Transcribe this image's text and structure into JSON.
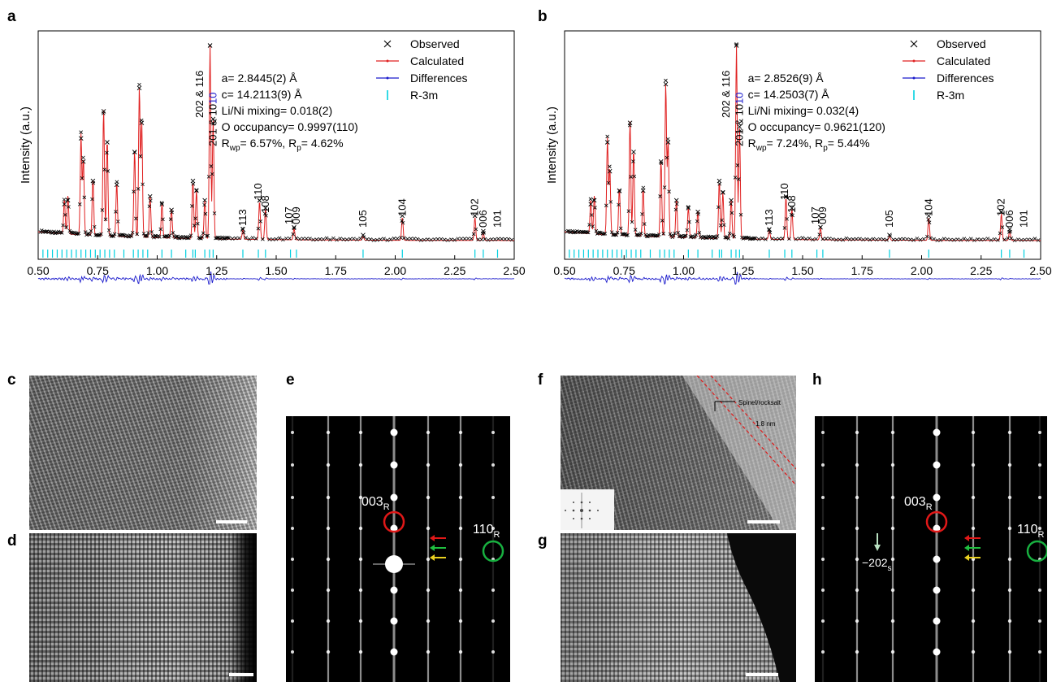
{
  "panels": {
    "a": "a",
    "b": "b",
    "c": "c",
    "d": "d",
    "e": "e",
    "f": "f",
    "g": "g",
    "h": "h"
  },
  "chart_data": [
    {
      "type": "line",
      "panel": "a",
      "xlabel": "d spacing (Angstrom)",
      "ylabel": "Intensity (a.u.)",
      "xlim": [
        0.5,
        2.5
      ],
      "xticks": [
        "0.50",
        "0.75",
        "1.00",
        "1.25",
        "1.50",
        "1.75",
        "2.00",
        "2.25",
        "2.50"
      ],
      "legend_position": "top-right",
      "legend": [
        "Observed",
        "Calculated",
        "Differences",
        "R-3m"
      ],
      "annotation_lines": [
        "a= 2.8445(2) Å",
        "c= 14.2113(9) Å",
        "Li/Ni mixing= 0.018(2)",
        "O occupancy= 0.9997(110)",
        "R_wp= 6.57%, R_p= 4.62%"
      ],
      "rwp": "6.57%",
      "rp": "4.62%",
      "peak_labels": [
        {
          "label": "202 & 116",
          "d": 1.22
        },
        {
          "label": "201 & 10",
          "d": 1.235
        },
        {
          "label": "113",
          "d": 1.36
        },
        {
          "label": "110",
          "d": 1.425
        },
        {
          "label": "108",
          "d": 1.455
        },
        {
          "label": "107",
          "d": 1.555
        },
        {
          "label": "009",
          "d": 1.585
        },
        {
          "label": "105",
          "d": 1.865
        },
        {
          "label": "104",
          "d": 2.03
        },
        {
          "label": "102",
          "d": 2.335
        },
        {
          "label": "006",
          "d": 2.37
        },
        {
          "label": "101",
          "d": 2.43
        }
      ],
      "peaks": [
        {
          "d": 0.61,
          "i": 0.18
        },
        {
          "d": 0.625,
          "i": 0.2
        },
        {
          "d": 0.68,
          "i": 0.52
        },
        {
          "d": 0.69,
          "i": 0.4
        },
        {
          "d": 0.73,
          "i": 0.3
        },
        {
          "d": 0.775,
          "i": 0.66
        },
        {
          "d": 0.79,
          "i": 0.5
        },
        {
          "d": 0.83,
          "i": 0.28
        },
        {
          "d": 0.905,
          "i": 0.45
        },
        {
          "d": 0.925,
          "i": 0.78
        },
        {
          "d": 0.935,
          "i": 0.6
        },
        {
          "d": 0.97,
          "i": 0.22
        },
        {
          "d": 1.02,
          "i": 0.18
        },
        {
          "d": 1.06,
          "i": 0.15
        },
        {
          "d": 1.15,
          "i": 0.3
        },
        {
          "d": 1.165,
          "i": 0.25
        },
        {
          "d": 1.2,
          "i": 0.2
        },
        {
          "d": 1.222,
          "i": 1.0
        },
        {
          "d": 1.235,
          "i": 0.62
        },
        {
          "d": 1.36,
          "i": 0.05
        },
        {
          "d": 1.43,
          "i": 0.2
        },
        {
          "d": 1.455,
          "i": 0.16
        },
        {
          "d": 1.575,
          "i": 0.06
        },
        {
          "d": 1.865,
          "i": 0.02
        },
        {
          "d": 2.03,
          "i": 0.12
        },
        {
          "d": 2.335,
          "i": 0.12
        },
        {
          "d": 2.37,
          "i": 0.04
        }
      ],
      "tick_marks_d": [
        0.52,
        0.54,
        0.56,
        0.58,
        0.6,
        0.62,
        0.64,
        0.66,
        0.68,
        0.7,
        0.72,
        0.74,
        0.76,
        0.78,
        0.8,
        0.82,
        0.86,
        0.9,
        0.92,
        0.94,
        0.96,
        1.02,
        1.06,
        1.12,
        1.15,
        1.16,
        1.2,
        1.22,
        1.235,
        1.36,
        1.425,
        1.455,
        1.56,
        1.585,
        1.865,
        2.03,
        2.335,
        2.37,
        2.43
      ]
    },
    {
      "type": "line",
      "panel": "b",
      "xlabel": "d spacing (Angstrom)",
      "ylabel": "Intensity (a.u.)",
      "xlim": [
        0.5,
        2.5
      ],
      "xticks": [
        "0.50",
        "0.75",
        "1.00",
        "1.25",
        "1.50",
        "1.75",
        "2.00",
        "2.25",
        "2.50"
      ],
      "legend_position": "top-right",
      "legend": [
        "Observed",
        "Calculated",
        "Differences",
        "R-3m"
      ],
      "annotation_lines": [
        "a= 2.8526(9) Å",
        "c= 14.2503(7) Å",
        "Li/Ni mixing= 0.032(4)",
        "O occupancy= 0.9621(120)",
        "R_wp= 7.24%, R_p= 5.44%"
      ],
      "rwp": "7.24%",
      "rp": "5.44%",
      "peak_labels": [
        {
          "label": "202 & 116",
          "d": 1.22
        },
        {
          "label": "201 & 10",
          "d": 1.235
        },
        {
          "label": "113",
          "d": 1.36
        },
        {
          "label": "110",
          "d": 1.425
        },
        {
          "label": "108",
          "d": 1.455
        },
        {
          "label": "107",
          "d": 1.555
        },
        {
          "label": "009",
          "d": 1.585
        },
        {
          "label": "105",
          "d": 1.865
        },
        {
          "label": "104",
          "d": 2.03
        },
        {
          "label": "102",
          "d": 2.335
        },
        {
          "label": "006",
          "d": 2.37
        },
        {
          "label": "101",
          "d": 2.43
        }
      ],
      "peaks": [
        {
          "d": 0.61,
          "i": 0.18
        },
        {
          "d": 0.625,
          "i": 0.2
        },
        {
          "d": 0.68,
          "i": 0.5
        },
        {
          "d": 0.69,
          "i": 0.35
        },
        {
          "d": 0.73,
          "i": 0.25
        },
        {
          "d": 0.775,
          "i": 0.6
        },
        {
          "d": 0.79,
          "i": 0.45
        },
        {
          "d": 0.83,
          "i": 0.25
        },
        {
          "d": 0.905,
          "i": 0.4
        },
        {
          "d": 0.925,
          "i": 0.8
        },
        {
          "d": 0.935,
          "i": 0.5
        },
        {
          "d": 0.97,
          "i": 0.2
        },
        {
          "d": 1.02,
          "i": 0.16
        },
        {
          "d": 1.06,
          "i": 0.14
        },
        {
          "d": 1.15,
          "i": 0.3
        },
        {
          "d": 1.165,
          "i": 0.24
        },
        {
          "d": 1.2,
          "i": 0.2
        },
        {
          "d": 1.222,
          "i": 1.0
        },
        {
          "d": 1.235,
          "i": 0.58
        },
        {
          "d": 1.36,
          "i": 0.05
        },
        {
          "d": 1.43,
          "i": 0.22
        },
        {
          "d": 1.455,
          "i": 0.16
        },
        {
          "d": 1.575,
          "i": 0.06
        },
        {
          "d": 1.865,
          "i": 0.02
        },
        {
          "d": 2.03,
          "i": 0.12
        },
        {
          "d": 2.335,
          "i": 0.14
        },
        {
          "d": 2.37,
          "i": 0.05
        }
      ],
      "tick_marks_d": [
        0.52,
        0.54,
        0.56,
        0.58,
        0.6,
        0.62,
        0.64,
        0.66,
        0.68,
        0.7,
        0.72,
        0.74,
        0.76,
        0.78,
        0.8,
        0.82,
        0.86,
        0.9,
        0.92,
        0.94,
        0.96,
        1.02,
        1.06,
        1.12,
        1.15,
        1.16,
        1.2,
        1.22,
        1.235,
        1.36,
        1.425,
        1.455,
        1.56,
        1.585,
        1.865,
        2.03,
        2.335,
        2.37,
        2.43
      ]
    }
  ],
  "sad_e": {
    "label_003": "003",
    "sub_003": "R",
    "label_110": "110",
    "sub_110": "R"
  },
  "hrtem_f": {
    "spinel_label": "Spinel/rocksalt",
    "thickness_label": "1.8 nm"
  },
  "sad_h": {
    "label_003": "003",
    "sub_003": "R",
    "label_110": "110",
    "sub_110": "R",
    "label_202": "−202",
    "sub_202": "s"
  },
  "colors": {
    "observed": "#000000",
    "calculated": "#e02020",
    "differences": "#1a1acc",
    "tick": "#00d0e0",
    "circle_red": "#e01818",
    "circle_green": "#18b040",
    "arrow_red": "#e01818",
    "arrow_green": "#20c040",
    "arrow_yellow": "#e8d020",
    "arrow_pale": "#b8e0c0"
  }
}
